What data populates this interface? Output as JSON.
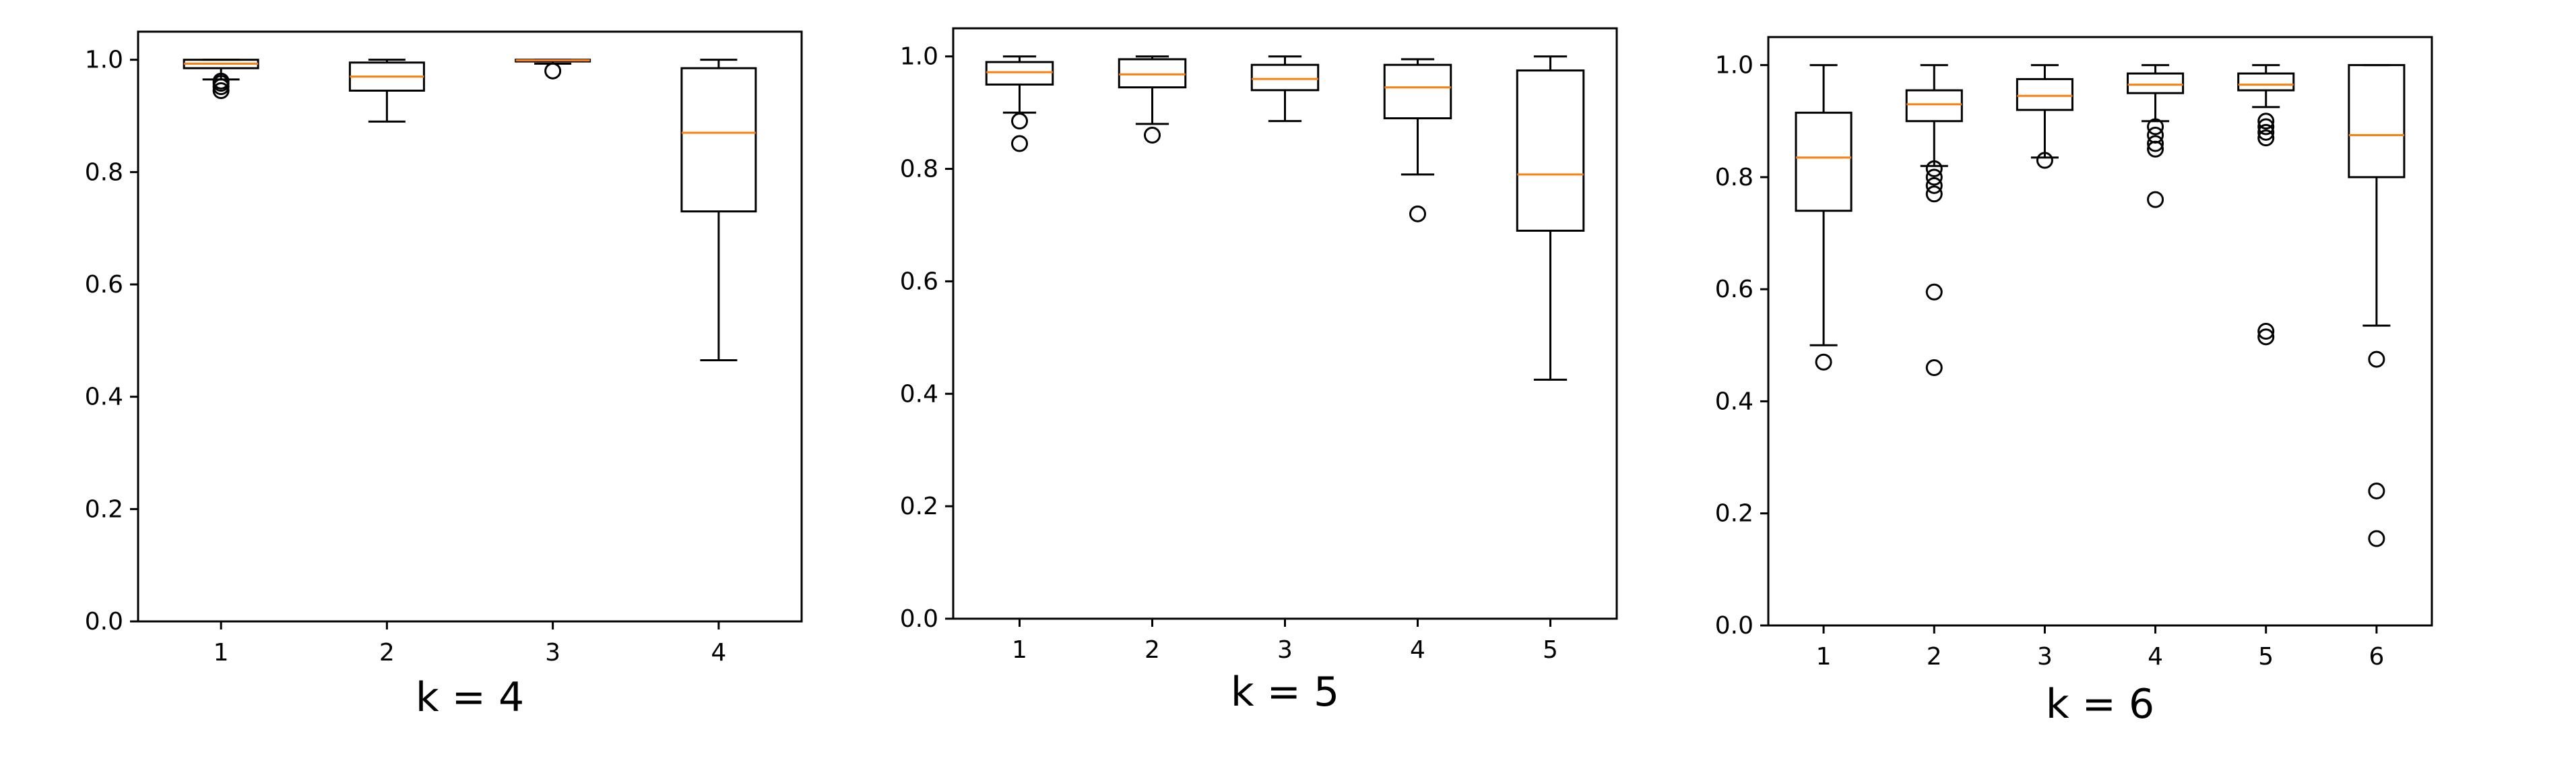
{
  "chart_data": [
    {
      "type": "box",
      "xlabel": "k = 4",
      "ylabel": "",
      "title": "",
      "ylim": [
        0.0,
        1.05
      ],
      "yticks": [
        "0.0",
        "0.2",
        "0.4",
        "0.6",
        "0.8",
        "1.0"
      ],
      "categories": [
        "1",
        "2",
        "3",
        "4"
      ],
      "grid": false,
      "boxes": [
        {
          "category": "1",
          "whisker_low": 0.965,
          "q1": 0.985,
          "median": 0.993,
          "q3": 1.0,
          "whisker_high": 1.0,
          "outliers": [
            0.945,
            0.952,
            0.958,
            0.962
          ]
        },
        {
          "category": "2",
          "whisker_low": 0.89,
          "q1": 0.945,
          "median": 0.97,
          "q3": 0.995,
          "whisker_high": 1.0,
          "outliers": []
        },
        {
          "category": "3",
          "whisker_low": 0.993,
          "q1": 0.997,
          "median": 0.999,
          "q3": 1.0,
          "whisker_high": 1.0,
          "outliers": [
            0.98
          ]
        },
        {
          "category": "4",
          "whisker_low": 0.465,
          "q1": 0.73,
          "median": 0.87,
          "q3": 0.985,
          "whisker_high": 1.0,
          "outliers": []
        }
      ]
    },
    {
      "type": "box",
      "xlabel": "k = 5",
      "ylabel": "",
      "title": "",
      "ylim": [
        0.0,
        1.05
      ],
      "yticks": [
        "0.0",
        "0.2",
        "0.4",
        "0.6",
        "0.8",
        "1.0"
      ],
      "categories": [
        "1",
        "2",
        "3",
        "4",
        "5"
      ],
      "grid": false,
      "boxes": [
        {
          "category": "1",
          "whisker_low": 0.9,
          "q1": 0.95,
          "median": 0.972,
          "q3": 0.99,
          "whisker_high": 1.0,
          "outliers": [
            0.885,
            0.845
          ]
        },
        {
          "category": "2",
          "whisker_low": 0.88,
          "q1": 0.945,
          "median": 0.968,
          "q3": 0.995,
          "whisker_high": 1.0,
          "outliers": [
            0.86
          ]
        },
        {
          "category": "3",
          "whisker_low": 0.885,
          "q1": 0.94,
          "median": 0.96,
          "q3": 0.985,
          "whisker_high": 1.0,
          "outliers": []
        },
        {
          "category": "4",
          "whisker_low": 0.79,
          "q1": 0.89,
          "median": 0.945,
          "q3": 0.985,
          "whisker_high": 0.995,
          "outliers": [
            0.72
          ]
        },
        {
          "category": "5",
          "whisker_low": 0.425,
          "q1": 0.69,
          "median": 0.79,
          "q3": 0.975,
          "whisker_high": 1.0,
          "outliers": []
        }
      ]
    },
    {
      "type": "box",
      "xlabel": "k = 6",
      "ylabel": "",
      "title": "",
      "ylim": [
        0.0,
        1.05
      ],
      "yticks": [
        "0.0",
        "0.2",
        "0.4",
        "0.6",
        "0.8",
        "1.0"
      ],
      "categories": [
        "1",
        "2",
        "3",
        "4",
        "5",
        "6"
      ],
      "grid": false,
      "boxes": [
        {
          "category": "1",
          "whisker_low": 0.5,
          "q1": 0.74,
          "median": 0.835,
          "q3": 0.915,
          "whisker_high": 1.0,
          "outliers": [
            0.47
          ]
        },
        {
          "category": "2",
          "whisker_low": 0.82,
          "q1": 0.9,
          "median": 0.93,
          "q3": 0.955,
          "whisker_high": 1.0,
          "outliers": [
            0.815,
            0.8,
            0.785,
            0.77,
            0.595,
            0.46
          ]
        },
        {
          "category": "3",
          "whisker_low": 0.835,
          "q1": 0.92,
          "median": 0.945,
          "q3": 0.975,
          "whisker_high": 1.0,
          "outliers": [
            0.83
          ]
        },
        {
          "category": "4",
          "whisker_low": 0.9,
          "q1": 0.95,
          "median": 0.965,
          "q3": 0.985,
          "whisker_high": 1.0,
          "outliers": [
            0.89,
            0.875,
            0.86,
            0.85,
            0.76
          ]
        },
        {
          "category": "5",
          "whisker_low": 0.925,
          "q1": 0.955,
          "median": 0.965,
          "q3": 0.985,
          "whisker_high": 1.0,
          "outliers": [
            0.9,
            0.89,
            0.88,
            0.87,
            0.525,
            0.515
          ]
        },
        {
          "category": "6",
          "whisker_low": 0.535,
          "q1": 0.8,
          "median": 0.875,
          "q3": 1.0,
          "whisker_high": 1.0,
          "outliers": [
            0.475,
            0.24,
            0.155
          ]
        }
      ]
    }
  ],
  "style": {
    "box_color": "#000000",
    "median_color": "#ff7f0e",
    "background": "#ffffff"
  }
}
